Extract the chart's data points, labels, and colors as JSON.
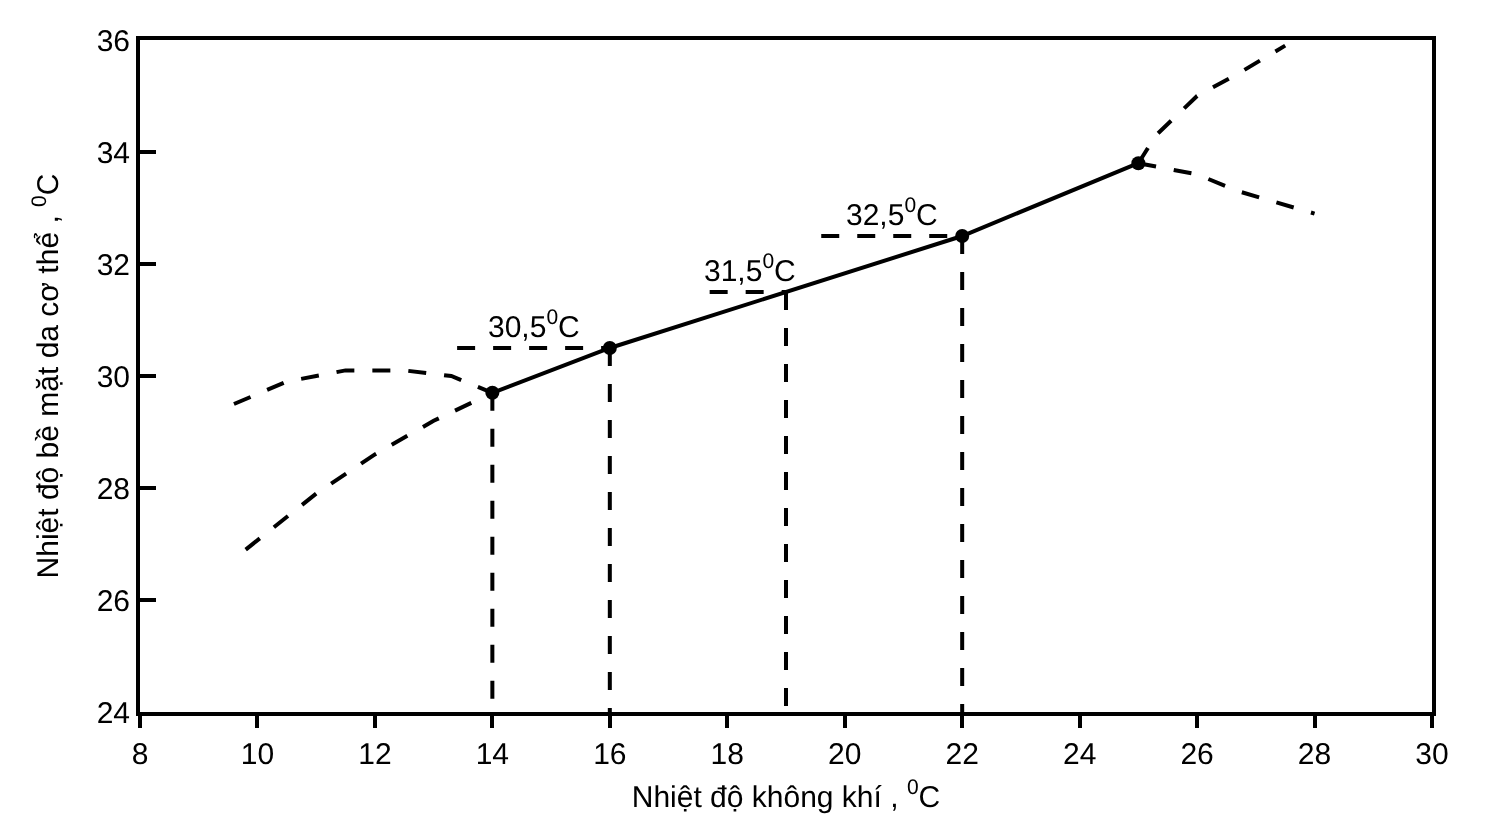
{
  "chart_data": {
    "type": "line",
    "xlabel": "Nhiệt độ không khí , $^{0}$C",
    "ylabel": "Nhiệt độ bề mặt da cơ thể , $^{0}$C",
    "xlim": [
      8,
      30
    ],
    "xticks": [
      8,
      10,
      12,
      14,
      16,
      18,
      20,
      22,
      24,
      26,
      28,
      30
    ],
    "ylim": [
      24,
      36
    ],
    "yticks": [
      24,
      26,
      28,
      30,
      32,
      34,
      36
    ],
    "series": [
      {
        "color": "#000000",
        "x": [
          14,
          16,
          22,
          25
        ],
        "values": [
          29.7,
          30.5,
          32.5,
          33.8
        ],
        "marker": "circle",
        "line_style": "solid"
      },
      {
        "color": "#000000",
        "x": [
          9.6,
          10.5,
          11.5,
          12.5,
          13.3,
          14
        ],
        "values": [
          29.5,
          29.9,
          30.1,
          30.1,
          30.0,
          29.7
        ],
        "line_style": "dashed"
      },
      {
        "color": "#000000",
        "x": [
          9.8,
          11,
          12,
          13,
          14
        ],
        "values": [
          26.9,
          27.9,
          28.6,
          29.2,
          29.7
        ],
        "line_style": "dashed"
      },
      {
        "color": "#000000",
        "x": [
          25,
          25.3,
          26,
          26.7,
          27.5
        ],
        "values": [
          33.8,
          34.3,
          35.0,
          35.4,
          35.9
        ],
        "line_style": "dashed"
      },
      {
        "color": "#000000",
        "x": [
          25,
          26,
          26.7,
          28
        ],
        "values": [
          33.8,
          33.6,
          33.3,
          32.9
        ],
        "line_style": "dashed"
      },
      {
        "color": "#000000",
        "x": [
          14,
          14
        ],
        "values": [
          29.7,
          24
        ],
        "line_style": "dashed"
      },
      {
        "color": "#000000",
        "x": [
          16,
          16
        ],
        "values": [
          30.5,
          24
        ],
        "line_style": "dashed"
      },
      {
        "color": "#000000",
        "x": [
          19,
          19
        ],
        "values": [
          31.5,
          24
        ],
        "line_style": "dashed"
      },
      {
        "color": "#000000",
        "x": [
          22,
          22
        ],
        "values": [
          32.5,
          24
        ],
        "line_style": "dashed"
      },
      {
        "color": "#000000",
        "x": [
          13.4,
          16
        ],
        "values": [
          30.5,
          30.5
        ],
        "line_style": "dashed"
      },
      {
        "color": "#000000",
        "x": [
          17.7,
          19
        ],
        "values": [
          31.5,
          31.5
        ],
        "line_style": "dashed"
      },
      {
        "color": "#000000",
        "x": [
          19.6,
          22
        ],
        "values": [
          32.5,
          32.5
        ],
        "line_style": "dashed"
      }
    ],
    "annotations": [
      {
        "text": "30,5$^{0}$C",
        "x": 14.7,
        "y": 30.5
      },
      {
        "text": "31,5$^{0}$C",
        "x": 18.4,
        "y": 31.5
      },
      {
        "text": "32,5$^{0}$C",
        "x": 20.8,
        "y": 32.5
      }
    ]
  }
}
